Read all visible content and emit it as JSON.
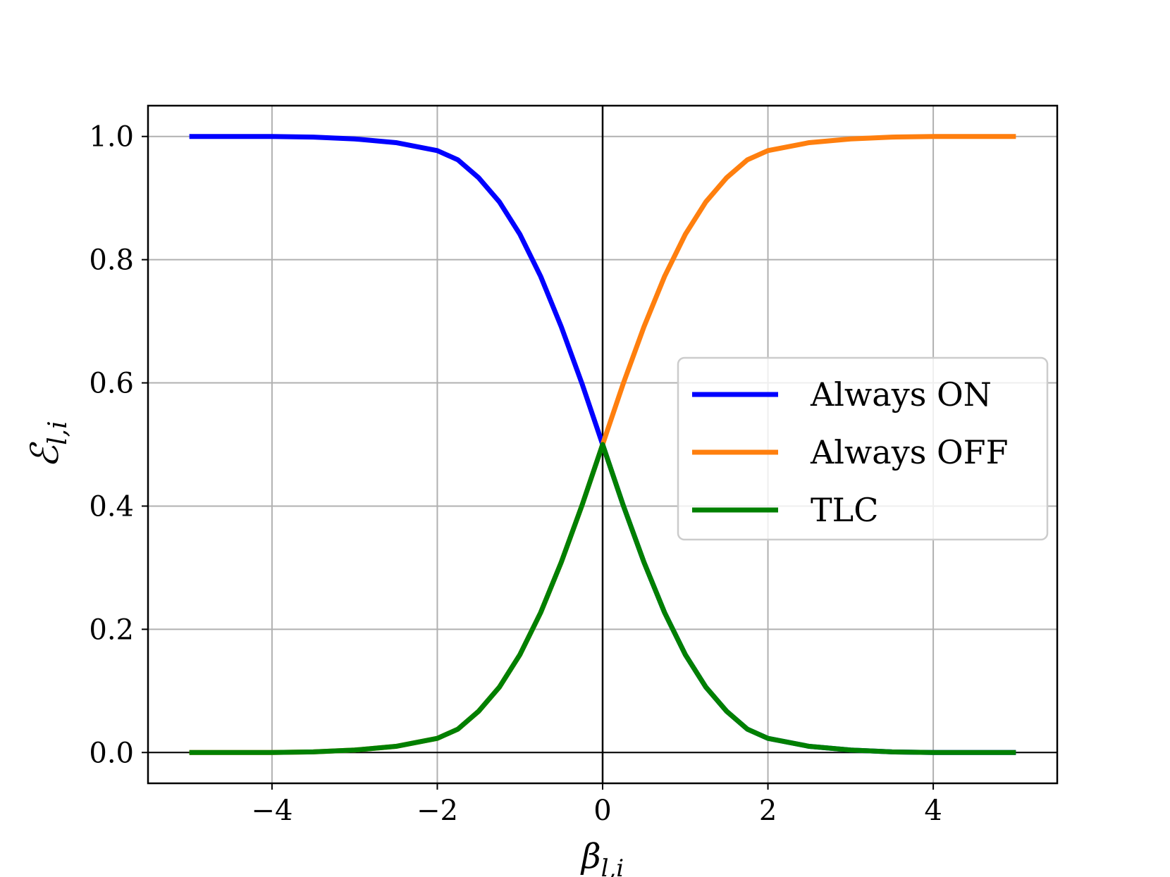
{
  "chart_data": {
    "type": "line",
    "xlabel": {
      "main": "β",
      "sub": "l,i"
    },
    "ylabel": {
      "main": "ℰ",
      "sub": "l,i"
    },
    "xlim": [
      -5.5,
      5.5
    ],
    "ylim": [
      -0.05,
      1.05
    ],
    "xticks": [
      -4,
      -2,
      0,
      2,
      4
    ],
    "xtick_labels": [
      "−4",
      "−2",
      "0",
      "2",
      "4"
    ],
    "yticks": [
      0.0,
      0.2,
      0.4,
      0.6,
      0.8,
      1.0
    ],
    "ytick_labels": [
      "0.0",
      "0.2",
      "0.4",
      "0.6",
      "0.8",
      "1.0"
    ],
    "grid": true,
    "reference_lines": {
      "x": 0,
      "y": 0
    },
    "legend_position": "center-right",
    "x": [
      -5,
      -4.5,
      -4,
      -3.5,
      -3,
      -2.5,
      -2,
      -1.75,
      -1.5,
      -1.25,
      -1,
      -0.75,
      -0.5,
      -0.25,
      0,
      0.25,
      0.5,
      0.75,
      1,
      1.25,
      1.5,
      1.75,
      2,
      2.5,
      3,
      3.5,
      4,
      4.5,
      5
    ],
    "series": [
      {
        "name": "Always ON",
        "color": "#0000ff",
        "values": [
          1.0,
          1.0,
          1.0,
          0.999,
          0.996,
          0.99,
          0.977,
          0.962,
          0.933,
          0.894,
          0.841,
          0.773,
          0.691,
          0.599,
          0.5,
          0.401,
          0.309,
          0.227,
          0.159,
          0.106,
          0.067,
          0.038,
          0.023,
          0.01,
          0.004,
          0.001,
          0.0,
          0.0,
          0.0
        ]
      },
      {
        "name": "Always OFF",
        "color": "#ff7f0e",
        "values": [
          0.0,
          0.0,
          0.0,
          0.001,
          0.004,
          0.01,
          0.023,
          0.038,
          0.067,
          0.106,
          0.159,
          0.227,
          0.309,
          0.401,
          0.5,
          0.599,
          0.691,
          0.773,
          0.841,
          0.894,
          0.933,
          0.962,
          0.977,
          0.99,
          0.996,
          0.999,
          1.0,
          1.0,
          1.0
        ]
      },
      {
        "name": "TLC",
        "color": "#008000",
        "values": [
          0.0,
          0.0,
          0.0,
          0.001,
          0.004,
          0.01,
          0.023,
          0.038,
          0.067,
          0.106,
          0.159,
          0.227,
          0.309,
          0.401,
          0.5,
          0.401,
          0.309,
          0.227,
          0.159,
          0.106,
          0.067,
          0.038,
          0.023,
          0.01,
          0.004,
          0.001,
          0.0,
          0.0,
          0.0
        ]
      }
    ]
  }
}
